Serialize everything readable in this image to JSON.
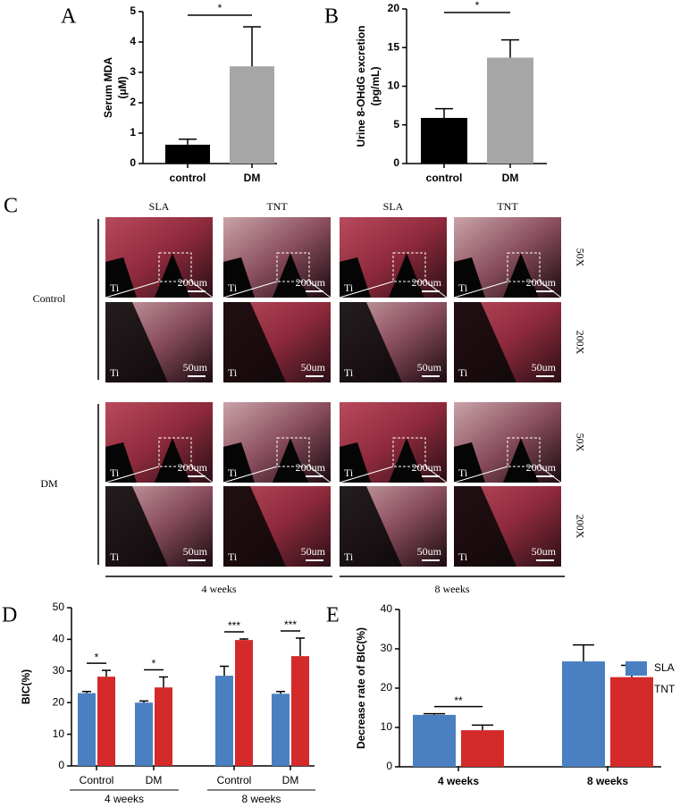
{
  "chart_data": [
    {
      "type": "bar",
      "panel": "A",
      "ylabel": [
        "Serum MDA",
        "(μM)"
      ],
      "categories": [
        "control",
        "DM"
      ],
      "values": [
        0.62,
        3.2
      ],
      "errors": [
        0.18,
        1.3
      ],
      "colors": [
        "#000000",
        "#a6a6a6"
      ],
      "ylim": [
        0,
        5
      ],
      "yticks": [
        0,
        1,
        2,
        3,
        4,
        5
      ],
      "significance": "*"
    },
    {
      "type": "bar",
      "panel": "B",
      "ylabel": [
        "Urine 8-OHdG excretion",
        "(pg/mL)"
      ],
      "categories": [
        "control",
        "DM"
      ],
      "values": [
        5.9,
        13.7
      ],
      "errors": [
        1.2,
        2.3
      ],
      "colors": [
        "#000000",
        "#a6a6a6"
      ],
      "ylim": [
        0,
        20
      ],
      "yticks": [
        0,
        5,
        10,
        15,
        20
      ],
      "significance": "*"
    },
    {
      "type": "grouped_bar",
      "panel": "D",
      "ylabel": "BIC(%)",
      "categories": [
        "Control",
        "DM",
        "Control",
        "DM"
      ],
      "groups": [
        "4 weeks",
        "8 weeks"
      ],
      "series": [
        {
          "color": "#4a7fc1",
          "values": [
            23,
            20,
            28.5,
            22.8
          ],
          "errors": [
            0.5,
            0.5,
            3,
            0.7
          ]
        },
        {
          "color": "#d42a2a",
          "values": [
            28.2,
            24.8,
            39.8,
            34.7
          ],
          "errors": [
            2,
            3.3,
            0.3,
            5.7
          ]
        }
      ],
      "ylim": [
        0,
        50
      ],
      "yticks": [
        0,
        10,
        20,
        30,
        40,
        50
      ],
      "significance": [
        "*",
        "*",
        "***",
        "***"
      ]
    },
    {
      "type": "grouped_bar",
      "panel": "E",
      "ylabel": "Decrease rate of BIC(%)",
      "categories": [
        "4 weeks",
        "8 weeks"
      ],
      "series": [
        {
          "name": "SLA",
          "color": "#4a7fc1",
          "values": [
            13.2,
            26.8
          ],
          "errors": [
            0.3,
            4.2
          ]
        },
        {
          "name": "TNT",
          "color": "#d42a2a",
          "values": [
            9.3,
            22.8
          ],
          "errors": [
            1.3,
            3
          ]
        }
      ],
      "ylim": [
        0,
        40
      ],
      "yticks": [
        0,
        10,
        20,
        30,
        40
      ],
      "significance": [
        "**",
        null
      ],
      "legend": "upper right"
    }
  ],
  "panel_c": {
    "panel": "C",
    "columns": [
      "SLA",
      "TNT",
      "SLA",
      "TNT"
    ],
    "rows": [
      "Control",
      "DM"
    ],
    "magnifications": [
      "50X",
      "200X",
      "50X",
      "200X"
    ],
    "times": [
      "4 weeks",
      "8 weeks"
    ],
    "tile_labels": {
      "ti": "Ti",
      "scale_50x": "200um",
      "scale_200x": "50um"
    }
  }
}
